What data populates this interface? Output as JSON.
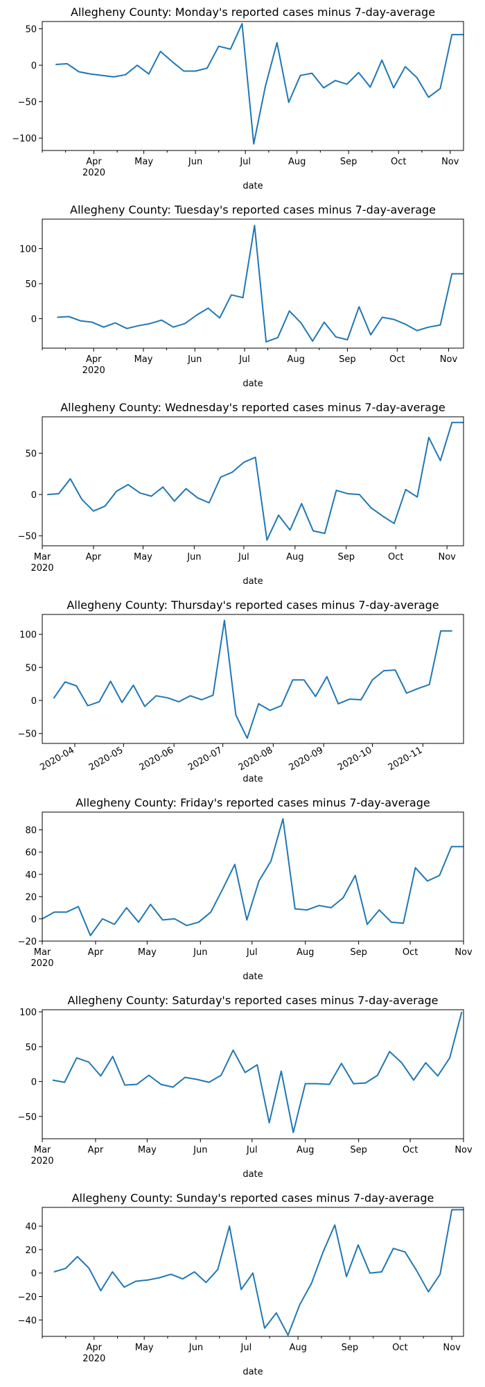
{
  "figure": {
    "background": "#ffffff",
    "line_color": "#1f77b4"
  },
  "chart_data": [
    {
      "type": "line",
      "title": "Allegheny County: Monday's reported cases minus 7-day-average",
      "xlabel": "date",
      "ylabel": "",
      "grid": false,
      "xlim": [
        "2020-03-01",
        "2020-11-09"
      ],
      "ylim": [
        -117,
        60
      ],
      "yticks": [
        50,
        0,
        -50,
        -100
      ],
      "xtick_style": "month",
      "xticks": [
        {
          "date": "2020-04-01",
          "label": "Apr",
          "sublabel": "2020"
        },
        {
          "date": "2020-05-01",
          "label": "May",
          "sublabel": ""
        },
        {
          "date": "2020-06-01",
          "label": "Jun",
          "sublabel": ""
        },
        {
          "date": "2020-07-01",
          "label": "Jul",
          "sublabel": ""
        },
        {
          "date": "2020-08-01",
          "label": "Aug",
          "sublabel": ""
        },
        {
          "date": "2020-09-01",
          "label": "Sep",
          "sublabel": ""
        },
        {
          "date": "2020-10-01",
          "label": "Oct",
          "sublabel": ""
        },
        {
          "date": "2020-11-01",
          "label": "Nov",
          "sublabel": ""
        }
      ],
      "minor_xticks": [
        "2020-03-01",
        "2020-03-15",
        "2020-04-15",
        "2020-05-15",
        "2020-06-15",
        "2020-07-15",
        "2020-08-15",
        "2020-09-15",
        "2020-10-15"
      ],
      "x": [
        "2020-03-09",
        "2020-03-16",
        "2020-03-23",
        "2020-03-30",
        "2020-04-06",
        "2020-04-13",
        "2020-04-20",
        "2020-04-27",
        "2020-05-04",
        "2020-05-11",
        "2020-05-18",
        "2020-05-25",
        "2020-06-01",
        "2020-06-08",
        "2020-06-15",
        "2020-06-22",
        "2020-06-29",
        "2020-07-06",
        "2020-07-13",
        "2020-07-20",
        "2020-07-27",
        "2020-08-03",
        "2020-08-10",
        "2020-08-17",
        "2020-08-24",
        "2020-08-31",
        "2020-09-07",
        "2020-09-14",
        "2020-09-21",
        "2020-09-28",
        "2020-10-05",
        "2020-10-12",
        "2020-10-19",
        "2020-10-26",
        "2020-11-02",
        "2020-11-09"
      ],
      "y": [
        1,
        2,
        -9,
        -12,
        -14,
        -16,
        -13,
        0,
        -12,
        19,
        5,
        -8,
        -8,
        -4,
        26,
        22,
        57,
        -108,
        -29,
        31,
        -51,
        -14,
        -11,
        -31,
        -21,
        -26,
        -10,
        -30,
        7,
        -31,
        -2,
        -17,
        -44,
        -32,
        42,
        42
      ]
    },
    {
      "type": "line",
      "title": "Allegheny County: Tuesday's reported cases minus 7-day-average",
      "xlabel": "date",
      "ylabel": "",
      "grid": false,
      "xlim": [
        "2020-03-01",
        "2020-11-10"
      ],
      "ylim": [
        -42,
        142
      ],
      "yticks": [
        100,
        50,
        0
      ],
      "xtick_style": "month",
      "xticks": [
        {
          "date": "2020-04-01",
          "label": "Apr",
          "sublabel": "2020"
        },
        {
          "date": "2020-05-01",
          "label": "May",
          "sublabel": ""
        },
        {
          "date": "2020-06-01",
          "label": "Jun",
          "sublabel": ""
        },
        {
          "date": "2020-07-01",
          "label": "Jul",
          "sublabel": ""
        },
        {
          "date": "2020-08-01",
          "label": "Aug",
          "sublabel": ""
        },
        {
          "date": "2020-09-01",
          "label": "Sep",
          "sublabel": ""
        },
        {
          "date": "2020-10-01",
          "label": "Oct",
          "sublabel": ""
        },
        {
          "date": "2020-11-01",
          "label": "Nov",
          "sublabel": ""
        }
      ],
      "minor_xticks": [
        "2020-03-01",
        "2020-03-15",
        "2020-04-15",
        "2020-05-15",
        "2020-06-15",
        "2020-07-15",
        "2020-08-15",
        "2020-09-15",
        "2020-10-15"
      ],
      "x": [
        "2020-03-10",
        "2020-03-17",
        "2020-03-24",
        "2020-03-31",
        "2020-04-07",
        "2020-04-14",
        "2020-04-21",
        "2020-04-28",
        "2020-05-05",
        "2020-05-12",
        "2020-05-19",
        "2020-05-26",
        "2020-06-02",
        "2020-06-09",
        "2020-06-16",
        "2020-06-23",
        "2020-06-30",
        "2020-07-07",
        "2020-07-14",
        "2020-07-21",
        "2020-07-28",
        "2020-08-04",
        "2020-08-11",
        "2020-08-18",
        "2020-08-25",
        "2020-09-01",
        "2020-09-08",
        "2020-09-15",
        "2020-09-22",
        "2020-09-29",
        "2020-10-06",
        "2020-10-13",
        "2020-10-20",
        "2020-10-27",
        "2020-11-03",
        "2020-11-10"
      ],
      "y": [
        2,
        3,
        -3,
        -5,
        -12,
        -6,
        -14,
        -10,
        -7,
        -2,
        -12,
        -7,
        5,
        15,
        1,
        34,
        30,
        133,
        -33,
        -27,
        11,
        -6,
        -32,
        -5,
        -26,
        -30,
        17,
        -23,
        2,
        -1,
        -8,
        -17,
        -12,
        -9,
        64,
        64
      ]
    },
    {
      "type": "line",
      "title": "Allegheny County: Wednesday's reported cases minus 7-day-average",
      "xlabel": "date",
      "ylabel": "",
      "grid": false,
      "xlim": [
        "2020-03-01",
        "2020-11-11"
      ],
      "ylim": [
        -62,
        94
      ],
      "yticks": [
        50,
        0,
        -50
      ],
      "xtick_style": "month",
      "xticks": [
        {
          "date": "2020-03-01",
          "label": "Mar",
          "sublabel": "2020"
        },
        {
          "date": "2020-04-01",
          "label": "Apr",
          "sublabel": ""
        },
        {
          "date": "2020-05-01",
          "label": "May",
          "sublabel": ""
        },
        {
          "date": "2020-06-01",
          "label": "Jun",
          "sublabel": ""
        },
        {
          "date": "2020-07-01",
          "label": "Jul",
          "sublabel": ""
        },
        {
          "date": "2020-08-01",
          "label": "Aug",
          "sublabel": ""
        },
        {
          "date": "2020-09-01",
          "label": "Sep",
          "sublabel": ""
        },
        {
          "date": "2020-10-01",
          "label": "Oct",
          "sublabel": ""
        },
        {
          "date": "2020-11-01",
          "label": "Nov",
          "sublabel": ""
        }
      ],
      "minor_xticks": [],
      "x": [
        "2020-03-04",
        "2020-03-11",
        "2020-03-18",
        "2020-03-25",
        "2020-04-01",
        "2020-04-08",
        "2020-04-15",
        "2020-04-22",
        "2020-04-29",
        "2020-05-06",
        "2020-05-13",
        "2020-05-20",
        "2020-05-27",
        "2020-06-03",
        "2020-06-10",
        "2020-06-17",
        "2020-06-24",
        "2020-07-01",
        "2020-07-08",
        "2020-07-15",
        "2020-07-22",
        "2020-07-29",
        "2020-08-05",
        "2020-08-12",
        "2020-08-19",
        "2020-08-26",
        "2020-09-02",
        "2020-09-09",
        "2020-09-16",
        "2020-09-23",
        "2020-09-30",
        "2020-10-07",
        "2020-10-14",
        "2020-10-21",
        "2020-10-28",
        "2020-11-04",
        "2020-11-11"
      ],
      "y": [
        0,
        1,
        19,
        -6,
        -20,
        -14,
        4,
        12,
        2,
        -2,
        9,
        -8,
        7,
        -4,
        -10,
        21,
        27,
        39,
        45,
        -55,
        -25,
        -43,
        -11,
        -44,
        -47,
        5,
        1,
        0,
        -16,
        -26,
        -35,
        6,
        -3,
        69,
        41,
        87,
        87
      ]
    },
    {
      "type": "line",
      "title": "Allegheny County: Thursday's reported cases minus 7-day-average",
      "xlabel": "date",
      "ylabel": "",
      "grid": false,
      "xlim": [
        "2020-03-12",
        "2020-11-26"
      ],
      "ylim": [
        -65,
        130
      ],
      "yticks": [
        100,
        50,
        0,
        -50
      ],
      "xtick_style": "rotated",
      "xticks": [
        {
          "date": "2020-04-01",
          "label": "2020-04",
          "sublabel": ""
        },
        {
          "date": "2020-05-01",
          "label": "2020-05",
          "sublabel": ""
        },
        {
          "date": "2020-06-01",
          "label": "2020-06",
          "sublabel": ""
        },
        {
          "date": "2020-07-01",
          "label": "2020-07",
          "sublabel": ""
        },
        {
          "date": "2020-08-01",
          "label": "2020-08",
          "sublabel": ""
        },
        {
          "date": "2020-09-01",
          "label": "2020-09",
          "sublabel": ""
        },
        {
          "date": "2020-10-01",
          "label": "2020-10",
          "sublabel": ""
        },
        {
          "date": "2020-11-01",
          "label": "2020-11",
          "sublabel": ""
        }
      ],
      "minor_xticks": [],
      "x": [
        "2020-03-19",
        "2020-03-26",
        "2020-04-02",
        "2020-04-09",
        "2020-04-16",
        "2020-04-23",
        "2020-04-30",
        "2020-05-07",
        "2020-05-14",
        "2020-05-21",
        "2020-05-28",
        "2020-06-04",
        "2020-06-11",
        "2020-06-18",
        "2020-06-25",
        "2020-07-02",
        "2020-07-09",
        "2020-07-16",
        "2020-07-23",
        "2020-07-30",
        "2020-08-06",
        "2020-08-13",
        "2020-08-20",
        "2020-08-27",
        "2020-09-03",
        "2020-09-10",
        "2020-09-17",
        "2020-09-24",
        "2020-10-01",
        "2020-10-08",
        "2020-10-15",
        "2020-10-22",
        "2020-10-29",
        "2020-11-05",
        "2020-11-12",
        "2020-11-19"
      ],
      "y": [
        3,
        28,
        22,
        -8,
        -2,
        29,
        -3,
        23,
        -9,
        7,
        4,
        -2,
        7,
        1,
        8,
        121,
        -22,
        -57,
        -5,
        -15,
        -8,
        31,
        31,
        6,
        36,
        -5,
        2,
        1,
        31,
        45,
        46,
        11,
        18,
        24,
        105,
        105
      ]
    },
    {
      "type": "line",
      "title": "Allegheny County: Friday's reported cases minus 7-day-average",
      "xlabel": "date",
      "ylabel": "",
      "grid": false,
      "xlim": [
        "2020-03-01",
        "2020-11-01"
      ],
      "ylim": [
        -20,
        96
      ],
      "yticks": [
        80,
        60,
        40,
        20,
        0,
        -20
      ],
      "xtick_style": "month",
      "xticks": [
        {
          "date": "2020-03-01",
          "label": "Mar",
          "sublabel": "2020"
        },
        {
          "date": "2020-04-01",
          "label": "Apr",
          "sublabel": ""
        },
        {
          "date": "2020-05-01",
          "label": "May",
          "sublabel": ""
        },
        {
          "date": "2020-06-01",
          "label": "Jun",
          "sublabel": ""
        },
        {
          "date": "2020-07-01",
          "label": "Jul",
          "sublabel": ""
        },
        {
          "date": "2020-08-01",
          "label": "Aug",
          "sublabel": ""
        },
        {
          "date": "2020-09-01",
          "label": "Sep",
          "sublabel": ""
        },
        {
          "date": "2020-10-01",
          "label": "Oct",
          "sublabel": ""
        },
        {
          "date": "2020-11-01",
          "label": "Nov",
          "sublabel": ""
        }
      ],
      "minor_xticks": [],
      "x": [
        "2020-03-01",
        "2020-03-08",
        "2020-03-15",
        "2020-03-22",
        "2020-03-29",
        "2020-04-05",
        "2020-04-12",
        "2020-04-19",
        "2020-04-26",
        "2020-05-03",
        "2020-05-10",
        "2020-05-17",
        "2020-05-24",
        "2020-05-31",
        "2020-06-07",
        "2020-06-14",
        "2020-06-21",
        "2020-06-28",
        "2020-07-05",
        "2020-07-12",
        "2020-07-19",
        "2020-07-26",
        "2020-08-02",
        "2020-08-09",
        "2020-08-16",
        "2020-08-23",
        "2020-08-30",
        "2020-09-06",
        "2020-09-13",
        "2020-09-20",
        "2020-09-27",
        "2020-10-04",
        "2020-10-11",
        "2020-10-18",
        "2020-10-25",
        "2020-11-01"
      ],
      "y": [
        0,
        6,
        6,
        11,
        -15,
        0,
        -5,
        10,
        -3,
        13,
        -1,
        0,
        -6,
        -3,
        6,
        27,
        49,
        -1,
        34,
        52,
        90,
        9,
        8,
        12,
        10,
        19,
        39,
        -5,
        8,
        -3,
        -4,
        46,
        34,
        39,
        65,
        65
      ]
    },
    {
      "type": "line",
      "title": "Allegheny County: Saturday's reported cases minus 7-day-average",
      "xlabel": "date",
      "ylabel": "",
      "grid": false,
      "xlim": [
        "2020-03-01",
        "2020-11-01"
      ],
      "ylim": [
        -82,
        103
      ],
      "yticks": [
        100,
        50,
        0,
        -50
      ],
      "xtick_style": "month",
      "xticks": [
        {
          "date": "2020-03-01",
          "label": "Mar",
          "sublabel": "2020"
        },
        {
          "date": "2020-04-01",
          "label": "Apr",
          "sublabel": ""
        },
        {
          "date": "2020-05-01",
          "label": "May",
          "sublabel": ""
        },
        {
          "date": "2020-06-01",
          "label": "Jun",
          "sublabel": ""
        },
        {
          "date": "2020-07-01",
          "label": "Jul",
          "sublabel": ""
        },
        {
          "date": "2020-08-01",
          "label": "Aug",
          "sublabel": ""
        },
        {
          "date": "2020-09-01",
          "label": "Sep",
          "sublabel": ""
        },
        {
          "date": "2020-10-01",
          "label": "Oct",
          "sublabel": ""
        },
        {
          "date": "2020-11-01",
          "label": "Nov",
          "sublabel": ""
        }
      ],
      "minor_xticks": [],
      "x": [
        "2020-03-07",
        "2020-03-14",
        "2020-03-21",
        "2020-03-28",
        "2020-04-04",
        "2020-04-11",
        "2020-04-18",
        "2020-04-25",
        "2020-05-02",
        "2020-05-09",
        "2020-05-16",
        "2020-05-23",
        "2020-05-30",
        "2020-06-06",
        "2020-06-13",
        "2020-06-20",
        "2020-06-27",
        "2020-07-04",
        "2020-07-11",
        "2020-07-18",
        "2020-07-25",
        "2020-08-01",
        "2020-08-08",
        "2020-08-15",
        "2020-08-22",
        "2020-08-29",
        "2020-09-05",
        "2020-09-12",
        "2020-09-19",
        "2020-09-26",
        "2020-10-03",
        "2020-10-10",
        "2020-10-17",
        "2020-10-24",
        "2020-10-31"
      ],
      "y": [
        2,
        -1,
        34,
        28,
        8,
        36,
        -5,
        -4,
        9,
        -4,
        -8,
        6,
        3,
        -1,
        9,
        45,
        13,
        24,
        -59,
        15,
        -73,
        -3,
        -3,
        -4,
        26,
        -3,
        -2,
        9,
        43,
        27,
        2,
        27,
        8,
        34,
        100
      ]
    },
    {
      "type": "line",
      "title": "Allegheny County: Sunday's reported cases minus 7-day-average",
      "xlabel": "date",
      "ylabel": "",
      "grid": false,
      "xlim": [
        "2020-03-01",
        "2020-11-08"
      ],
      "ylim": [
        -54,
        56
      ],
      "yticks": [
        40,
        20,
        0,
        -20,
        -40
      ],
      "xtick_style": "month",
      "xticks": [
        {
          "date": "2020-04-01",
          "label": "Apr",
          "sublabel": "2020"
        },
        {
          "date": "2020-05-01",
          "label": "May",
          "sublabel": ""
        },
        {
          "date": "2020-06-01",
          "label": "Jun",
          "sublabel": ""
        },
        {
          "date": "2020-07-01",
          "label": "Jul",
          "sublabel": ""
        },
        {
          "date": "2020-08-01",
          "label": "Aug",
          "sublabel": ""
        },
        {
          "date": "2020-09-01",
          "label": "Sep",
          "sublabel": ""
        },
        {
          "date": "2020-10-01",
          "label": "Oct",
          "sublabel": ""
        },
        {
          "date": "2020-11-01",
          "label": "Nov",
          "sublabel": ""
        }
      ],
      "minor_xticks": [
        "2020-03-01",
        "2020-03-15",
        "2020-04-15",
        "2020-05-15",
        "2020-06-15",
        "2020-07-15",
        "2020-08-15",
        "2020-09-15",
        "2020-10-15"
      ],
      "x": [
        "2020-03-08",
        "2020-03-15",
        "2020-03-22",
        "2020-03-29",
        "2020-04-05",
        "2020-04-12",
        "2020-04-19",
        "2020-04-26",
        "2020-05-03",
        "2020-05-10",
        "2020-05-17",
        "2020-05-24",
        "2020-05-31",
        "2020-06-07",
        "2020-06-14",
        "2020-06-21",
        "2020-06-28",
        "2020-07-05",
        "2020-07-12",
        "2020-07-19",
        "2020-07-26",
        "2020-08-02",
        "2020-08-09",
        "2020-08-16",
        "2020-08-23",
        "2020-08-30",
        "2020-09-06",
        "2020-09-13",
        "2020-09-20",
        "2020-09-27",
        "2020-10-04",
        "2020-10-11",
        "2020-10-18",
        "2020-10-25",
        "2020-11-01",
        "2020-11-08"
      ],
      "y": [
        1,
        4,
        14,
        4,
        -15,
        1,
        -12,
        -7,
        -6,
        -4,
        -1,
        -5,
        1,
        -8,
        3,
        40,
        -14,
        0,
        -47,
        -34,
        -53,
        -27,
        -9,
        18,
        41,
        -3,
        24,
        0,
        1,
        21,
        18,
        2,
        -16,
        -1,
        54,
        54
      ]
    }
  ]
}
